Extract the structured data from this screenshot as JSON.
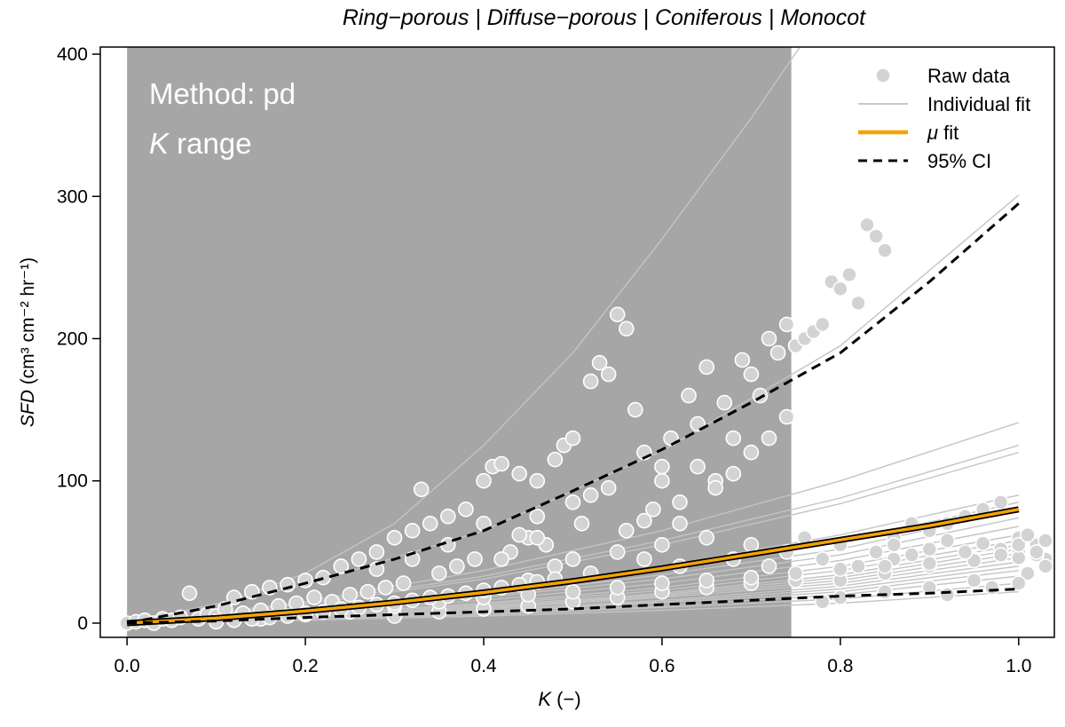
{
  "chart_data": {
    "type": "scatter",
    "title": "Ring−porous | Diffuse−porous | Coniferous | Monocot",
    "xlabel": {
      "main": "K",
      "unit": " (−)"
    },
    "ylabel": {
      "main": "SFD",
      "unit": " (cm³ cm⁻² hr⁻¹)"
    },
    "xlim": [
      -0.03,
      1.04
    ],
    "ylim": [
      -10,
      405
    ],
    "x_ticks": [
      0.0,
      0.2,
      0.4,
      0.6,
      0.8,
      1.0
    ],
    "x_tick_labels": [
      "0.0",
      "0.2",
      "0.4",
      "0.6",
      "0.8",
      "1.0"
    ],
    "y_ticks": [
      0,
      100,
      200,
      300,
      400
    ],
    "y_tick_labels": [
      "0",
      "100",
      "200",
      "300",
      "400"
    ],
    "grid": false,
    "legend_position": "top-right",
    "k_range": {
      "from": 0.0,
      "to": 0.745,
      "color": "#a6a6a6"
    },
    "annotations": {
      "method": "Method: pd",
      "k_range_symbol": "K",
      "k_range_word": " range"
    },
    "legend": [
      {
        "label": "Raw data",
        "kind": "point",
        "color": "#d3d3d3"
      },
      {
        "label": "Individual fit",
        "kind": "line",
        "color": "#c0c0c0"
      },
      {
        "label": "μ fit",
        "symbol": "μ",
        "text": " fit",
        "kind": "thick-line",
        "color": "#f5a300"
      },
      {
        "label": "95% CI",
        "kind": "dashed-line",
        "color": "#000000"
      }
    ],
    "series": [
      {
        "name": "μ fit",
        "kind": "fit",
        "color": "#f5a300",
        "x": [
          0,
          0.1,
          0.2,
          0.3,
          0.4,
          0.5,
          0.6,
          0.7,
          0.8,
          0.9,
          1.0
        ],
        "y": [
          0,
          3.5,
          8.5,
          14.5,
          21.5,
          29.5,
          38.5,
          48.5,
          58.5,
          68.5,
          80
        ]
      },
      {
        "name": "95% CI",
        "kind": "ci-upper",
        "color": "#000000",
        "x": [
          0,
          0.1,
          0.2,
          0.3,
          0.4,
          0.5,
          0.6,
          0.7,
          0.8,
          0.9,
          1.0
        ],
        "y": [
          0,
          12,
          28,
          45,
          65,
          93,
          122,
          155,
          190,
          240,
          295
        ]
      },
      {
        "name": "95% CI",
        "kind": "ci-lower",
        "color": "#000000",
        "x": [
          0,
          0.1,
          0.2,
          0.3,
          0.4,
          0.5,
          0.6,
          0.7,
          0.8,
          0.9,
          1.0
        ],
        "y": [
          0,
          1.5,
          4,
          6,
          8,
          10,
          13,
          16,
          19,
          21,
          24
        ]
      }
    ],
    "individual_fits": [
      {
        "x": [
          0,
          0.1,
          0.2,
          0.3,
          0.4,
          0.5,
          0.6,
          0.7,
          0.76
        ],
        "y": [
          0,
          12,
          35,
          70,
          125,
          190,
          270,
          355,
          410
        ]
      },
      {
        "x": [
          0,
          0.2,
          0.4,
          0.6,
          0.8,
          1.0
        ],
        "y": [
          0,
          27,
          65,
          121,
          195,
          301
        ]
      },
      {
        "x": [
          0,
          0.2,
          0.4,
          0.6,
          0.8,
          1.0
        ],
        "y": [
          0,
          15,
          37,
          65,
          100,
          141
        ]
      },
      {
        "x": [
          0,
          0.2,
          0.4,
          0.6,
          0.8,
          1.0
        ],
        "y": [
          0,
          14,
          33,
          58,
          88,
          125
        ]
      },
      {
        "x": [
          0,
          0.2,
          0.4,
          0.6,
          0.8,
          1.0
        ],
        "y": [
          0,
          13,
          31,
          55,
          84,
          120
        ]
      },
      {
        "x": [
          0,
          0.2,
          0.4,
          0.6,
          0.8,
          1.0
        ],
        "y": [
          0,
          10,
          23,
          40,
          62,
          90
        ]
      },
      {
        "x": [
          0,
          0.2,
          0.4,
          0.6,
          0.8,
          1.0
        ],
        "y": [
          0,
          9,
          21,
          37,
          57,
          85
        ]
      },
      {
        "x": [
          0,
          0.2,
          0.4,
          0.6,
          0.8,
          1.0
        ],
        "y": [
          0,
          8,
          19,
          34,
          52,
          80
        ]
      },
      {
        "x": [
          0,
          0.2,
          0.4,
          0.6,
          0.8,
          1.0
        ],
        "y": [
          0,
          8,
          18,
          31,
          48,
          74
        ]
      },
      {
        "x": [
          0,
          0.2,
          0.4,
          0.6,
          0.8,
          1.0
        ],
        "y": [
          0,
          7,
          16,
          28,
          44,
          68
        ]
      },
      {
        "x": [
          0,
          0.2,
          0.4,
          0.6,
          0.8,
          1.0
        ],
        "y": [
          0,
          6,
          14,
          25,
          40,
          62
        ]
      },
      {
        "x": [
          0,
          0.2,
          0.4,
          0.6,
          0.8,
          1.0
        ],
        "y": [
          0,
          6,
          13,
          23,
          37,
          58
        ]
      },
      {
        "x": [
          0,
          0.2,
          0.4,
          0.6,
          0.8,
          1.0
        ],
        "y": [
          0,
          5,
          12,
          21,
          34,
          55
        ]
      },
      {
        "x": [
          0,
          0.2,
          0.4,
          0.6,
          0.8,
          1.0
        ],
        "y": [
          0,
          5,
          11,
          20,
          32,
          52
        ]
      },
      {
        "x": [
          0,
          0.2,
          0.4,
          0.6,
          0.8,
          1.0
        ],
        "y": [
          0,
          5,
          11,
          19,
          30,
          49
        ]
      },
      {
        "x": [
          0,
          0.2,
          0.4,
          0.6,
          0.8,
          1.0
        ],
        "y": [
          0,
          4,
          10,
          18,
          28,
          46
        ]
      },
      {
        "x": [
          0,
          0.2,
          0.4,
          0.6,
          0.8,
          1.0
        ],
        "y": [
          0,
          4,
          9,
          16,
          26,
          43
        ]
      },
      {
        "x": [
          0,
          0.2,
          0.4,
          0.6,
          0.8,
          1.0
        ],
        "y": [
          0,
          4,
          9,
          15,
          24,
          40
        ]
      },
      {
        "x": [
          0,
          0.2,
          0.4,
          0.6,
          0.8,
          1.0
        ],
        "y": [
          0,
          3,
          8,
          14,
          22,
          37
        ]
      },
      {
        "x": [
          0,
          0.2,
          0.4,
          0.6,
          0.8,
          1.0
        ],
        "y": [
          0,
          3,
          7,
          12,
          20,
          33
        ]
      },
      {
        "x": [
          0,
          0.2,
          0.4,
          0.6,
          0.8,
          1.0
        ],
        "y": [
          0,
          3,
          6,
          11,
          17,
          28
        ]
      },
      {
        "x": [
          0,
          0.2,
          0.4,
          0.6,
          0.8,
          1.0
        ],
        "y": [
          0,
          2,
          5,
          9,
          14,
          22
        ]
      }
    ],
    "raw_points": [
      [
        0.0,
        0
      ],
      [
        0.01,
        1
      ],
      [
        0.02,
        2
      ],
      [
        0.03,
        0
      ],
      [
        0.04,
        3
      ],
      [
        0.05,
        2
      ],
      [
        0.06,
        4
      ],
      [
        0.07,
        21
      ],
      [
        0.08,
        3
      ],
      [
        0.09,
        6
      ],
      [
        0.1,
        5
      ],
      [
        0.11,
        10
      ],
      [
        0.12,
        18
      ],
      [
        0.13,
        7
      ],
      [
        0.14,
        22
      ],
      [
        0.15,
        9
      ],
      [
        0.16,
        25
      ],
      [
        0.17,
        12
      ],
      [
        0.18,
        27
      ],
      [
        0.19,
        14
      ],
      [
        0.2,
        30
      ],
      [
        0.21,
        18
      ],
      [
        0.22,
        32
      ],
      [
        0.23,
        15
      ],
      [
        0.24,
        40
      ],
      [
        0.25,
        20
      ],
      [
        0.26,
        45
      ],
      [
        0.27,
        22
      ],
      [
        0.28,
        50
      ],
      [
        0.29,
        25
      ],
      [
        0.3,
        60
      ],
      [
        0.31,
        28
      ],
      [
        0.32,
        65
      ],
      [
        0.33,
        94
      ],
      [
        0.34,
        70
      ],
      [
        0.35,
        35
      ],
      [
        0.36,
        75
      ],
      [
        0.37,
        40
      ],
      [
        0.38,
        80
      ],
      [
        0.39,
        45
      ],
      [
        0.4,
        100
      ],
      [
        0.41,
        110
      ],
      [
        0.42,
        112
      ],
      [
        0.43,
        50
      ],
      [
        0.44,
        105
      ],
      [
        0.45,
        60
      ],
      [
        0.46,
        100
      ],
      [
        0.47,
        55
      ],
      [
        0.48,
        115
      ],
      [
        0.49,
        125
      ],
      [
        0.5,
        130
      ],
      [
        0.51,
        70
      ],
      [
        0.52,
        170
      ],
      [
        0.53,
        183
      ],
      [
        0.54,
        175
      ],
      [
        0.55,
        217
      ],
      [
        0.56,
        207
      ],
      [
        0.57,
        150
      ],
      [
        0.58,
        120
      ],
      [
        0.59,
        80
      ],
      [
        0.6,
        110
      ],
      [
        0.61,
        130
      ],
      [
        0.62,
        70
      ],
      [
        0.63,
        160
      ],
      [
        0.64,
        140
      ],
      [
        0.65,
        180
      ],
      [
        0.66,
        100
      ],
      [
        0.67,
        155
      ],
      [
        0.68,
        130
      ],
      [
        0.69,
        185
      ],
      [
        0.7,
        175
      ],
      [
        0.71,
        160
      ],
      [
        0.72,
        200
      ],
      [
        0.73,
        190
      ],
      [
        0.74,
        210
      ],
      [
        0.75,
        195
      ],
      [
        0.76,
        200
      ],
      [
        0.77,
        205
      ],
      [
        0.78,
        210
      ],
      [
        0.79,
        240
      ],
      [
        0.8,
        235
      ],
      [
        0.81,
        245
      ],
      [
        0.82,
        225
      ],
      [
        0.83,
        280
      ],
      [
        0.84,
        272
      ],
      [
        0.85,
        262
      ],
      [
        0.86,
        60
      ],
      [
        0.88,
        70
      ],
      [
        0.9,
        65
      ],
      [
        0.92,
        70
      ],
      [
        0.94,
        75
      ],
      [
        0.96,
        80
      ],
      [
        0.98,
        85
      ],
      [
        1.0,
        60
      ],
      [
        0.3,
        5
      ],
      [
        0.35,
        8
      ],
      [
        0.4,
        10
      ],
      [
        0.45,
        12
      ],
      [
        0.5,
        15
      ],
      [
        0.55,
        18
      ],
      [
        0.6,
        22
      ],
      [
        0.65,
        25
      ],
      [
        0.7,
        28
      ],
      [
        0.75,
        30
      ],
      [
        0.8,
        30
      ],
      [
        0.85,
        35
      ],
      [
        0.9,
        40
      ],
      [
        0.95,
        45
      ],
      [
        1.0,
        50
      ],
      [
        1.02,
        55
      ],
      [
        1.03,
        45
      ],
      [
        1.01,
        35
      ],
      [
        0.97,
        25
      ],
      [
        0.92,
        20
      ],
      [
        0.42,
        45
      ],
      [
        0.45,
        30
      ],
      [
        0.48,
        40
      ],
      [
        0.5,
        45
      ],
      [
        0.52,
        35
      ],
      [
        0.55,
        50
      ],
      [
        0.58,
        45
      ],
      [
        0.6,
        55
      ],
      [
        0.62,
        40
      ],
      [
        0.65,
        60
      ],
      [
        0.68,
        45
      ],
      [
        0.7,
        55
      ],
      [
        0.72,
        40
      ],
      [
        0.74,
        50
      ],
      [
        0.76,
        60
      ],
      [
        0.78,
        45
      ],
      [
        0.8,
        55
      ],
      [
        0.82,
        40
      ],
      [
        0.84,
        50
      ],
      [
        0.86,
        45
      ],
      [
        0.15,
        3
      ],
      [
        0.2,
        6
      ],
      [
        0.25,
        8
      ],
      [
        0.3,
        12
      ],
      [
        0.35,
        15
      ],
      [
        0.4,
        18
      ],
      [
        0.45,
        20
      ],
      [
        0.5,
        22
      ],
      [
        0.55,
        25
      ],
      [
        0.6,
        28
      ],
      [
        0.65,
        30
      ],
      [
        0.7,
        32
      ],
      [
        0.75,
        35
      ],
      [
        0.8,
        38
      ],
      [
        0.85,
        40
      ],
      [
        0.9,
        42
      ],
      [
        0.95,
        44
      ],
      [
        1.0,
        46
      ],
      [
        1.02,
        48
      ],
      [
        0.98,
        52
      ],
      [
        0.1,
        1
      ],
      [
        0.12,
        2
      ],
      [
        0.14,
        3
      ],
      [
        0.16,
        4
      ],
      [
        0.18,
        5
      ],
      [
        0.2,
        7
      ],
      [
        0.22,
        8
      ],
      [
        0.24,
        10
      ],
      [
        0.26,
        11
      ],
      [
        0.28,
        13
      ],
      [
        0.3,
        14
      ],
      [
        0.32,
        16
      ],
      [
        0.34,
        18
      ],
      [
        0.36,
        19
      ],
      [
        0.38,
        21
      ],
      [
        0.4,
        23
      ],
      [
        0.42,
        25
      ],
      [
        0.44,
        27
      ],
      [
        0.46,
        29
      ],
      [
        0.48,
        31
      ],
      [
        0.44,
        62
      ],
      [
        0.46,
        75
      ],
      [
        0.5,
        85
      ],
      [
        0.52,
        90
      ],
      [
        0.56,
        65
      ],
      [
        0.58,
        72
      ],
      [
        0.62,
        85
      ],
      [
        0.66,
        95
      ],
      [
        0.68,
        105
      ],
      [
        0.7,
        120
      ],
      [
        0.72,
        130
      ],
      [
        0.74,
        145
      ],
      [
        0.6,
        100
      ],
      [
        0.64,
        110
      ],
      [
        0.54,
        95
      ],
      [
        0.46,
        60
      ],
      [
        0.4,
        70
      ],
      [
        0.36,
        55
      ],
      [
        0.32,
        45
      ],
      [
        0.28,
        38
      ],
      [
        0.86,
        55
      ],
      [
        0.88,
        48
      ],
      [
        0.9,
        52
      ],
      [
        0.92,
        58
      ],
      [
        0.94,
        50
      ],
      [
        0.96,
        56
      ],
      [
        0.98,
        48
      ],
      [
        1.0,
        55
      ],
      [
        1.01,
        62
      ],
      [
        1.02,
        50
      ],
      [
        1.03,
        58
      ],
      [
        1.03,
        40
      ],
      [
        1.0,
        28
      ],
      [
        0.95,
        30
      ],
      [
        0.9,
        25
      ],
      [
        0.85,
        22
      ],
      [
        0.8,
        18
      ],
      [
        0.78,
        15
      ]
    ]
  }
}
